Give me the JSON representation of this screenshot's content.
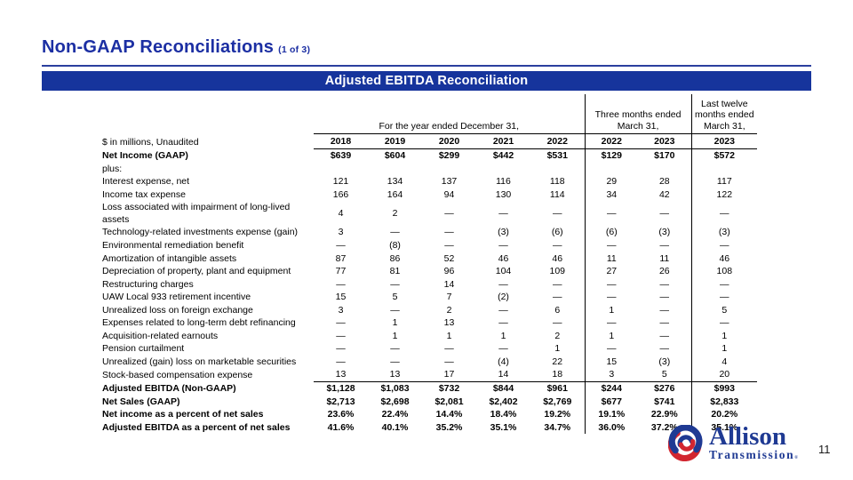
{
  "header": {
    "title": "Non-GAAP Reconciliations",
    "subtitle": "(1 of 3)"
  },
  "banner": {
    "text": "Adjusted EBITDA Reconciliation"
  },
  "table": {
    "note": "$ in millions, Unaudited",
    "col_groups": [
      {
        "label": "For the year ended December 31,"
      },
      {
        "label": "Three months ended\nMarch 31,"
      },
      {
        "label": "Last twelve\nmonths ended\nMarch 31,"
      }
    ],
    "years": [
      "2018",
      "2019",
      "2020",
      "2021",
      "2022",
      "2022",
      "2023",
      "2023"
    ],
    "rows": [
      {
        "label": "Net Income (GAAP)",
        "bold": true,
        "values": [
          "$639",
          "$604",
          "$299",
          "$442",
          "$531",
          "$129",
          "$170",
          "$572"
        ]
      },
      {
        "label": "plus:",
        "values": [
          "",
          "",
          "",
          "",
          "",
          "",
          "",
          ""
        ]
      },
      {
        "label": "Interest expense, net",
        "values": [
          "121",
          "134",
          "137",
          "116",
          "118",
          "29",
          "28",
          "117"
        ]
      },
      {
        "label": "Income tax expense",
        "values": [
          "166",
          "164",
          "94",
          "130",
          "114",
          "34",
          "42",
          "122"
        ]
      },
      {
        "label": "Loss associated with impairment of long-lived assets",
        "values": [
          "4",
          "2",
          "—",
          "—",
          "—",
          "—",
          "—",
          "—"
        ]
      },
      {
        "label": "Technology-related investments expense (gain)",
        "values": [
          "3",
          "—",
          "—",
          "(3)",
          "(6)",
          "(6)",
          "(3)",
          "(3)"
        ]
      },
      {
        "label": "Environmental remediation benefit",
        "values": [
          "—",
          "(8)",
          "—",
          "—",
          "—",
          "—",
          "—",
          "—"
        ]
      },
      {
        "label": "Amortization of intangible assets",
        "values": [
          "87",
          "86",
          "52",
          "46",
          "46",
          "11",
          "11",
          "46"
        ]
      },
      {
        "label": "Depreciation of property, plant and equipment",
        "values": [
          "77",
          "81",
          "96",
          "104",
          "109",
          "27",
          "26",
          "108"
        ]
      },
      {
        "label": "Restructuring charges",
        "values": [
          "—",
          "—",
          "14",
          "—",
          "—",
          "—",
          "—",
          "—"
        ]
      },
      {
        "label": "UAW Local 933 retirement incentive",
        "values": [
          "15",
          "5",
          "7",
          "(2)",
          "—",
          "—",
          "—",
          "—"
        ]
      },
      {
        "label": "Unrealized loss on foreign exchange",
        "values": [
          "3",
          "—",
          "2",
          "—",
          "6",
          "1",
          "—",
          "5"
        ]
      },
      {
        "label": "Expenses related to long-term debt refinancing",
        "values": [
          "—",
          "1",
          "13",
          "—",
          "—",
          "—",
          "—",
          "—"
        ]
      },
      {
        "label": "Acquisition-related earnouts",
        "values": [
          "—",
          "1",
          "1",
          "1",
          "2",
          "1",
          "—",
          "1"
        ]
      },
      {
        "label": "Pension curtailment",
        "values": [
          "—",
          "—",
          "—",
          "—",
          "1",
          "—",
          "—",
          "1"
        ]
      },
      {
        "label": "Unrealized (gain) loss on marketable securities",
        "values": [
          "—",
          "—",
          "—",
          "(4)",
          "22",
          "15",
          "(3)",
          "4"
        ]
      },
      {
        "label": "Stock-based compensation expense",
        "underline": true,
        "values": [
          "13",
          "13",
          "17",
          "14",
          "18",
          "3",
          "5",
          "20"
        ]
      },
      {
        "label": "Adjusted EBITDA (Non-GAAP)",
        "bold": true,
        "values": [
          "$1,128",
          "$1,083",
          "$732",
          "$844",
          "$961",
          "$244",
          "$276",
          "$993"
        ]
      },
      {
        "label": "Net Sales (GAAP)",
        "bold": true,
        "values": [
          "$2,713",
          "$2,698",
          "$2,081",
          "$2,402",
          "$2,769",
          "$677",
          "$741",
          "$2,833"
        ]
      },
      {
        "label": "Net income as a percent of net sales",
        "bold": true,
        "values": [
          "23.6%",
          "22.4%",
          "14.4%",
          "18.4%",
          "19.2%",
          "19.1%",
          "22.9%",
          "20.2%"
        ]
      },
      {
        "label": "Adjusted EBITDA as a percent of net sales",
        "bold": true,
        "values": [
          "41.6%",
          "40.1%",
          "35.2%",
          "35.1%",
          "34.7%",
          "36.0%",
          "37.2%",
          "35.1%"
        ]
      }
    ]
  },
  "logo": {
    "line1": "Allison",
    "line2": "Transmission",
    "registered_mark": "®"
  },
  "page_number": "11",
  "colors": {
    "title_blue": "#1C2FA3",
    "banner_blue": "#16349C",
    "logo_navy": "#1F3A93",
    "logo_red": "#D22630"
  }
}
